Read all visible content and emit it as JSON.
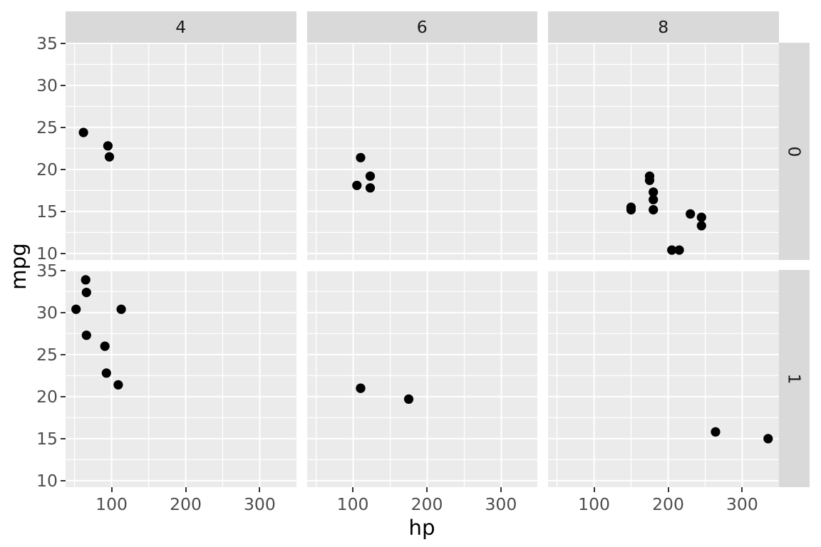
{
  "colors": {
    "background": "#FFFFFF",
    "panel_bg": "#EBEBEB",
    "strip_bg": "#D9D9D9",
    "grid": "#FFFFFF",
    "point": "#000000",
    "axis_text": "#4D4D4D",
    "axis_title": "#000000",
    "strip_text": "#1A1A1A",
    "tick_mark": "#333333"
  },
  "chart_data": {
    "type": "scatter",
    "title": "",
    "xlabel": "hp",
    "ylabel": "mpg",
    "grid": "on",
    "legend": "none",
    "facet": {
      "col_levels": [
        "4",
        "6",
        "8"
      ],
      "row_levels": [
        "0",
        "1"
      ]
    },
    "x_domain": [
      37.85,
      349.15
    ],
    "y_domain": [
      9.225,
      35.075
    ],
    "x_ticks": {
      "values": [
        100,
        200,
        300
      ],
      "labels": [
        "100",
        "200",
        "300"
      ]
    },
    "y_ticks": {
      "values": [
        10,
        15,
        20,
        25,
        30,
        35
      ],
      "labels": [
        "10",
        "15",
        "20",
        "25",
        "30",
        "35"
      ]
    },
    "x_minor": [
      50,
      150,
      250,
      350
    ],
    "y_minor": [
      12.5,
      17.5,
      22.5,
      27.5,
      32.5
    ],
    "points": [
      {
        "cyl": "4",
        "am": "0",
        "hp": 62,
        "mpg": 24.4
      },
      {
        "cyl": "4",
        "am": "0",
        "hp": 95,
        "mpg": 22.8
      },
      {
        "cyl": "4",
        "am": "0",
        "hp": 97,
        "mpg": 21.5
      },
      {
        "cyl": "4",
        "am": "1",
        "hp": 93,
        "mpg": 22.8
      },
      {
        "cyl": "4",
        "am": "1",
        "hp": 66,
        "mpg": 32.4
      },
      {
        "cyl": "4",
        "am": "1",
        "hp": 52,
        "mpg": 30.4
      },
      {
        "cyl": "4",
        "am": "1",
        "hp": 65,
        "mpg": 33.9
      },
      {
        "cyl": "4",
        "am": "1",
        "hp": 66,
        "mpg": 27.3
      },
      {
        "cyl": "4",
        "am": "1",
        "hp": 91,
        "mpg": 26.0
      },
      {
        "cyl": "4",
        "am": "1",
        "hp": 113,
        "mpg": 30.4
      },
      {
        "cyl": "4",
        "am": "1",
        "hp": 109,
        "mpg": 21.4
      },
      {
        "cyl": "6",
        "am": "0",
        "hp": 110,
        "mpg": 21.4
      },
      {
        "cyl": "6",
        "am": "0",
        "hp": 105,
        "mpg": 18.1
      },
      {
        "cyl": "6",
        "am": "0",
        "hp": 123,
        "mpg": 19.2
      },
      {
        "cyl": "6",
        "am": "0",
        "hp": 123,
        "mpg": 17.8
      },
      {
        "cyl": "6",
        "am": "1",
        "hp": 110,
        "mpg": 21.0
      },
      {
        "cyl": "6",
        "am": "1",
        "hp": 110,
        "mpg": 21.0
      },
      {
        "cyl": "6",
        "am": "1",
        "hp": 175,
        "mpg": 19.7
      },
      {
        "cyl": "8",
        "am": "0",
        "hp": 175,
        "mpg": 18.7
      },
      {
        "cyl": "8",
        "am": "0",
        "hp": 245,
        "mpg": 14.3
      },
      {
        "cyl": "8",
        "am": "0",
        "hp": 180,
        "mpg": 16.4
      },
      {
        "cyl": "8",
        "am": "0",
        "hp": 180,
        "mpg": 17.3
      },
      {
        "cyl": "8",
        "am": "0",
        "hp": 180,
        "mpg": 15.2
      },
      {
        "cyl": "8",
        "am": "0",
        "hp": 205,
        "mpg": 10.4
      },
      {
        "cyl": "8",
        "am": "0",
        "hp": 215,
        "mpg": 10.4
      },
      {
        "cyl": "8",
        "am": "0",
        "hp": 230,
        "mpg": 14.7
      },
      {
        "cyl": "8",
        "am": "0",
        "hp": 150,
        "mpg": 15.5
      },
      {
        "cyl": "8",
        "am": "0",
        "hp": 150,
        "mpg": 15.2
      },
      {
        "cyl": "8",
        "am": "0",
        "hp": 245,
        "mpg": 13.3
      },
      {
        "cyl": "8",
        "am": "0",
        "hp": 175,
        "mpg": 19.2
      },
      {
        "cyl": "8",
        "am": "1",
        "hp": 264,
        "mpg": 15.8
      },
      {
        "cyl": "8",
        "am": "1",
        "hp": 335,
        "mpg": 15.0
      }
    ]
  }
}
